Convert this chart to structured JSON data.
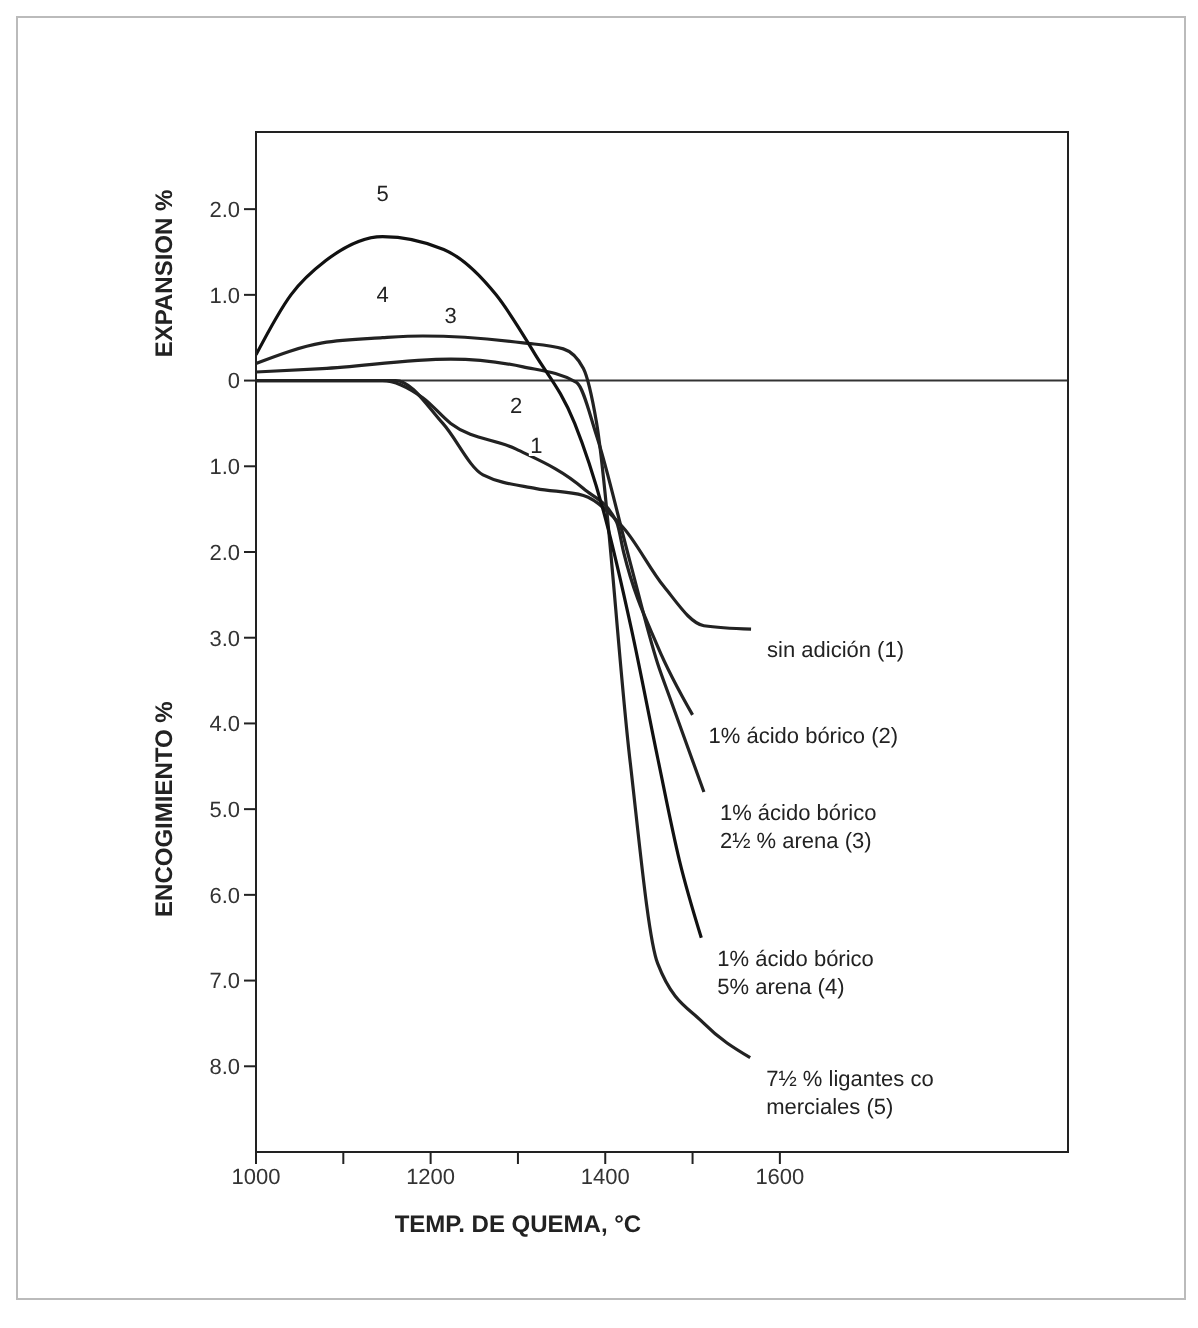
{
  "chart_data": {
    "type": "line",
    "xlabel": "TEMP. DE QUEMA, °C",
    "ylabel": "ENCOGIMIENTO %",
    "xlim": [
      1000,
      1930
    ],
    "xticks": [
      1000,
      {
        "value": 1100,
        "label": null
      },
      1200,
      {
        "value": 1300,
        "label": null
      },
      1400,
      {
        "value": 1500,
        "label": null
      },
      1600
    ],
    "ylim": [
      -9,
      2.9
    ],
    "yticks": [
      {
        "value": 2,
        "label": "2.0"
      },
      {
        "value": 1,
        "label": "1.0"
      },
      0,
      {
        "value": -1,
        "label": "1.0"
      },
      {
        "value": -2,
        "label": "2.0"
      },
      {
        "value": -3,
        "label": "3.0"
      },
      {
        "value": -4,
        "label": "4.0"
      },
      {
        "value": -5,
        "label": "5.0"
      },
      {
        "value": -6,
        "label": "6.0"
      },
      {
        "value": -7,
        "label": "7.0"
      },
      {
        "value": -8,
        "label": "8.0"
      }
    ],
    "marker": "none",
    "line_style": "solid",
    "ref_lines": [
      {
        "axis": "y",
        "value": 0,
        "color": "#333333"
      }
    ],
    "series": [
      {
        "color": "#222222",
        "x": [
          1000,
          1145,
          1160,
          1214,
          1260,
          1321,
          1375,
          1421,
          1467,
          1513,
          1567
        ],
        "values": [
          0,
          0,
          0,
          -0.5,
          -1.1,
          -1.26,
          -1.34,
          -1.72,
          -2.4,
          -2.86,
          -2.9
        ]
      },
      {
        "color": "#222222",
        "x": [
          1000,
          1145,
          1191,
          1223,
          1298,
          1375,
          1413,
          1421,
          1460,
          1500
        ],
        "values": [
          0,
          0,
          -0.2,
          -0.5,
          -0.8,
          -1.26,
          -1.65,
          -2.0,
          -3.1,
          -3.9
        ]
      },
      {
        "color": "#222222",
        "x": [
          1000,
          1076,
          1223,
          1306,
          1367,
          1390,
          1428,
          1460,
          1474,
          1513
        ],
        "values": [
          0.1,
          0.14,
          0.25,
          0.16,
          -0.02,
          -0.64,
          -2.1,
          -3.3,
          -3.7,
          -4.8
        ]
      },
      {
        "color": "#222222",
        "x": [
          1000,
          1076,
          1145,
          1191,
          1306,
          1352,
          1375,
          1390,
          1428,
          1460,
          1513,
          1566
        ],
        "values": [
          0.2,
          0.44,
          0.5,
          0.52,
          0.44,
          0.37,
          0.14,
          -0.49,
          -4.4,
          -6.8,
          -7.5,
          -7.9
        ]
      },
      {
        "color": "#111111",
        "x": [
          1000,
          1040,
          1080,
          1145,
          1215,
          1275,
          1320,
          1365,
          1400,
          1430,
          1460,
          1485,
          1510
        ],
        "values": [
          0.3,
          1.0,
          1.4,
          1.68,
          1.53,
          1.0,
          0.3,
          -0.5,
          -1.6,
          -2.9,
          -4.4,
          -5.6,
          -6.5
        ]
      }
    ],
    "annotations": [
      "EXPANSION %",
      {
        "text": "1",
        "x": 1321,
        "y": -1.26
      },
      {
        "text": "2",
        "x": 1298,
        "y": -0.8
      },
      {
        "text": "3",
        "x": 1223,
        "y": 0.25
      },
      {
        "text": "4",
        "x": 1145,
        "y": 0.5
      },
      {
        "text": "5",
        "x": 1145,
        "y": 1.68
      },
      {
        "text": "sin adición (1)",
        "x": 1567,
        "y": -2.9
      },
      {
        "text": "1% ácido bórico (2)",
        "x": 1500,
        "y": -3.9
      },
      {
        "text": "1% ácido bórico\n2½ % arena (3)",
        "x": 1513,
        "y": -4.8
      },
      {
        "text": "1% ácido bórico\n5% arena (4)",
        "x": 1510,
        "y": -6.5
      },
      {
        "text": "7½ % ligantes co\nmerciales (5)",
        "x": 1566,
        "y": -7.9
      }
    ]
  }
}
